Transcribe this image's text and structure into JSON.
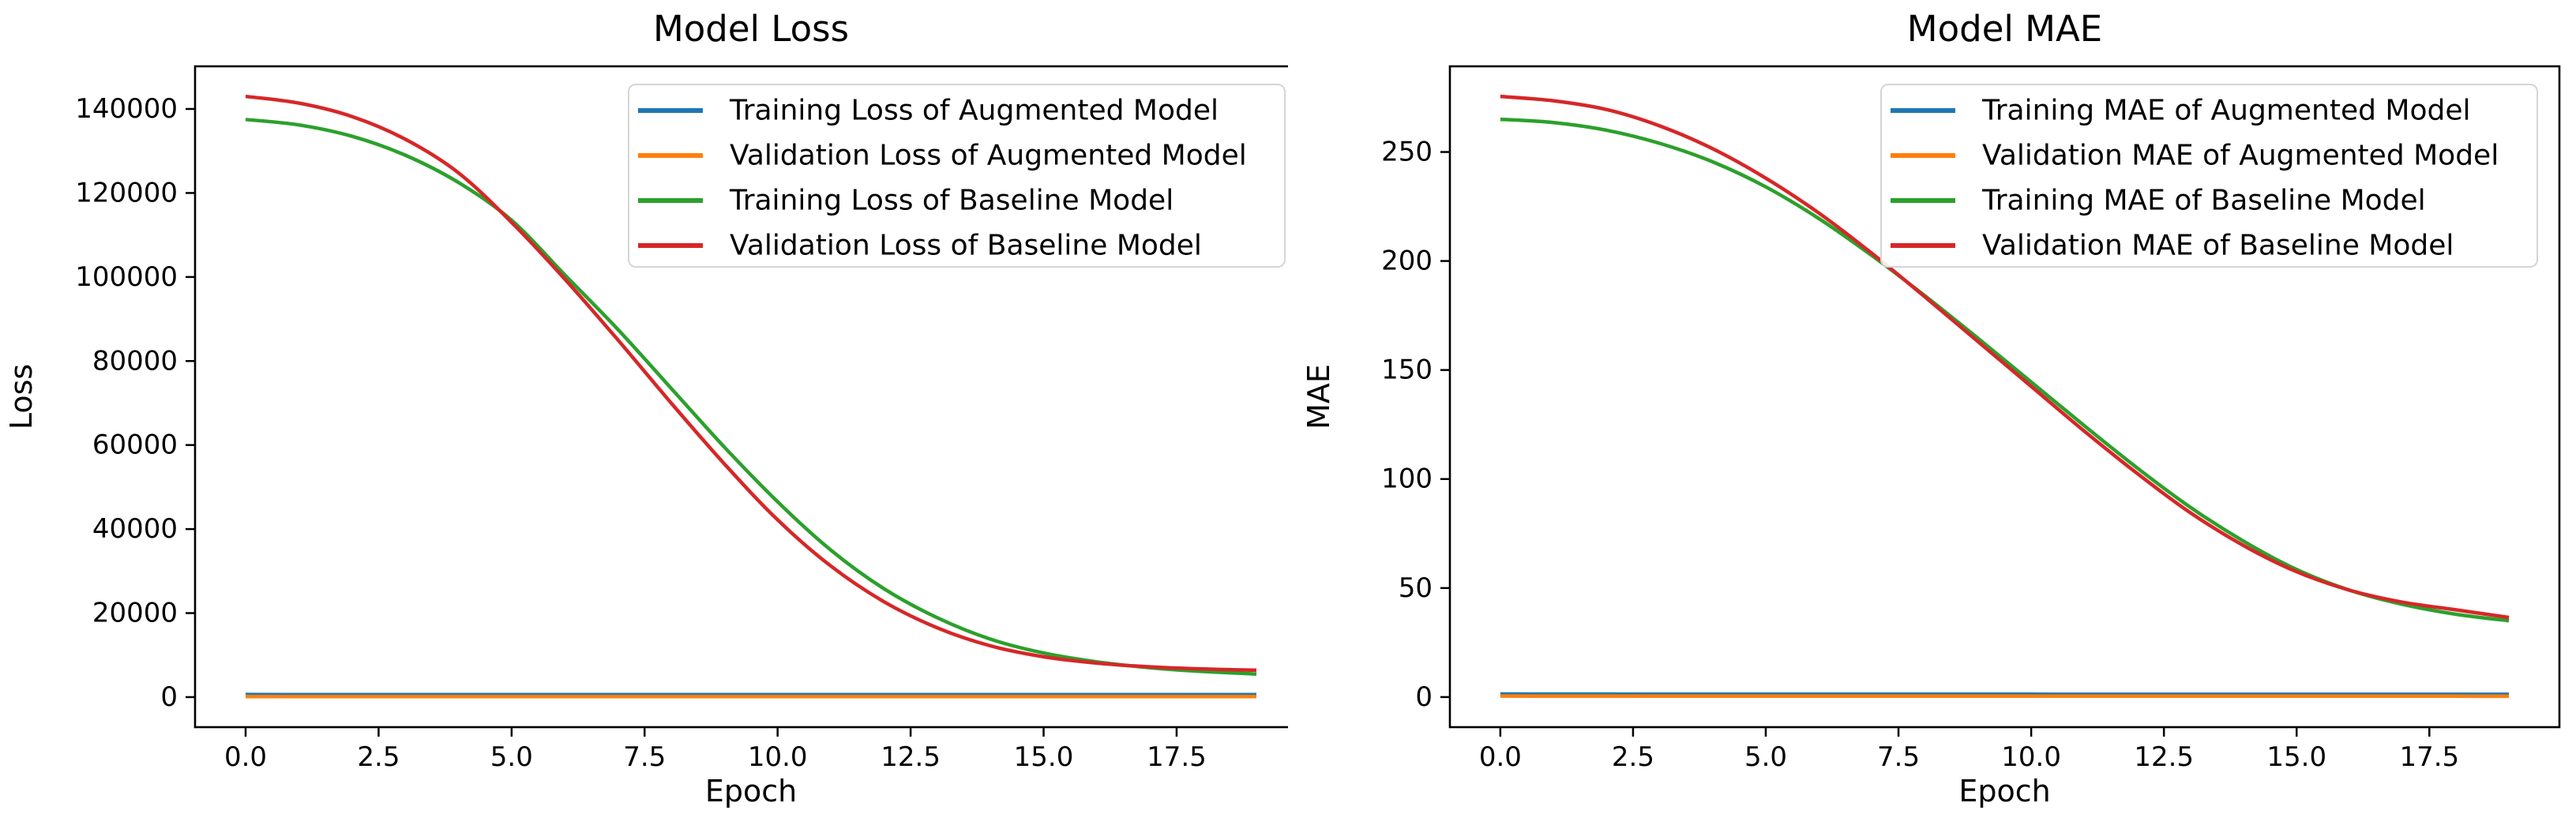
{
  "figure": {
    "background": "#ffffff",
    "text_color": "#000000",
    "spine_color": "#000000"
  },
  "palette": {
    "blue": "#1f77b4",
    "orange": "#ff7f0e",
    "green": "#2ca02c",
    "red": "#d62728",
    "legend_border": "#d5d5d5",
    "legend_background": "#ffffff"
  },
  "chart_data": [
    {
      "type": "line",
      "title": "Model Loss",
      "xlabel": "Epoch",
      "ylabel": "Loss",
      "grid": false,
      "legend_position": "upper right",
      "x": [
        0,
        1,
        2,
        3,
        4,
        5,
        6,
        7,
        8,
        9,
        10,
        11,
        12,
        13,
        14,
        15,
        16,
        17,
        18,
        19
      ],
      "xlim": [
        -0.95,
        19.95
      ],
      "ylim": [
        -7150,
        150150
      ],
      "xticks": [
        0,
        2.5,
        5,
        7.5,
        10,
        12.5,
        15,
        17.5
      ],
      "xtick_labels": [
        "0.0",
        "2.5",
        "5.0",
        "7.5",
        "10.0",
        "12.5",
        "15.0",
        "17.5"
      ],
      "yticks": [
        0,
        20000,
        40000,
        60000,
        80000,
        100000,
        120000,
        140000
      ],
      "ytick_labels": [
        "0",
        "20000",
        "40000",
        "60000",
        "80000",
        "100000",
        "120000",
        "140000"
      ],
      "series": [
        {
          "name": "Training Loss of Augmented Model",
          "color_key": "blue",
          "values": [
            620,
            615,
            610,
            606,
            603,
            601,
            600,
            599,
            598,
            597,
            596,
            595,
            594,
            594,
            593,
            593,
            592,
            592,
            592,
            591
          ]
        },
        {
          "name": "Validation Loss of Augmented Model",
          "color_key": "orange",
          "values": [
            130,
            128,
            126,
            124,
            123,
            122,
            121,
            120,
            120,
            119,
            119,
            118,
            118,
            118,
            117,
            117,
            117,
            117,
            116,
            116
          ]
        },
        {
          "name": "Training Loss of Baseline Model",
          "color_key": "green",
          "values": [
            137500,
            136200,
            133500,
            129000,
            122500,
            113500,
            100500,
            87500,
            73500,
            59500,
            46500,
            35000,
            25800,
            18900,
            13800,
            10500,
            8400,
            7000,
            6100,
            5500
          ]
        },
        {
          "name": "Validation Loss of Baseline Model",
          "color_key": "red",
          "values": [
            143000,
            141400,
            138200,
            132800,
            124800,
            113000,
            99500,
            85000,
            70000,
            55500,
            42200,
            31200,
            22700,
            16500,
            12200,
            9600,
            8100,
            7200,
            6700,
            6400
          ]
        }
      ]
    },
    {
      "type": "line",
      "title": "Model MAE",
      "xlabel": "Epoch",
      "ylabel": "MAE",
      "grid": false,
      "legend_position": "upper right",
      "x": [
        0,
        1,
        2,
        3,
        4,
        5,
        6,
        7,
        8,
        9,
        10,
        11,
        12,
        13,
        14,
        15,
        16,
        17,
        18,
        19
      ],
      "xlim": [
        -0.95,
        19.95
      ],
      "ylim": [
        -13.8,
        289.3
      ],
      "xticks": [
        0,
        2.5,
        5,
        7.5,
        10,
        12.5,
        15,
        17.5
      ],
      "xtick_labels": [
        "0.0",
        "2.5",
        "5.0",
        "7.5",
        "10.0",
        "12.5",
        "15.0",
        "17.5"
      ],
      "yticks": [
        0,
        50,
        100,
        150,
        200,
        250
      ],
      "ytick_labels": [
        "0",
        "50",
        "100",
        "150",
        "200",
        "250"
      ],
      "series": [
        {
          "name": "Training MAE of Augmented Model",
          "color_key": "blue",
          "values": [
            1.4,
            1.38,
            1.36,
            1.34,
            1.33,
            1.32,
            1.31,
            1.3,
            1.3,
            1.29,
            1.29,
            1.28,
            1.28,
            1.28,
            1.27,
            1.27,
            1.27,
            1.26,
            1.26,
            1.26
          ]
        },
        {
          "name": "Validation MAE of Augmented Model",
          "color_key": "orange",
          "values": [
            0.45,
            0.44,
            0.43,
            0.42,
            0.42,
            0.41,
            0.41,
            0.4,
            0.4,
            0.4,
            0.39,
            0.39,
            0.39,
            0.39,
            0.38,
            0.38,
            0.38,
            0.38,
            0.38,
            0.37
          ]
        },
        {
          "name": "Training MAE of Baseline Model",
          "color_key": "green",
          "values": [
            265,
            263.5,
            260,
            254,
            245.5,
            234,
            219.5,
            202.5,
            184,
            164.5,
            144.5,
            124.5,
            105,
            87,
            71.5,
            58.5,
            49,
            42.5,
            38,
            35
          ]
        },
        {
          "name": "Validation MAE of Baseline Model",
          "color_key": "red",
          "values": [
            275.5,
            273.5,
            269.5,
            262,
            251.5,
            238,
            222,
            203.5,
            183.5,
            163,
            142.5,
            122,
            102.5,
            84.5,
            69.5,
            57.5,
            49,
            43.5,
            40,
            36.5
          ]
        }
      ]
    }
  ]
}
